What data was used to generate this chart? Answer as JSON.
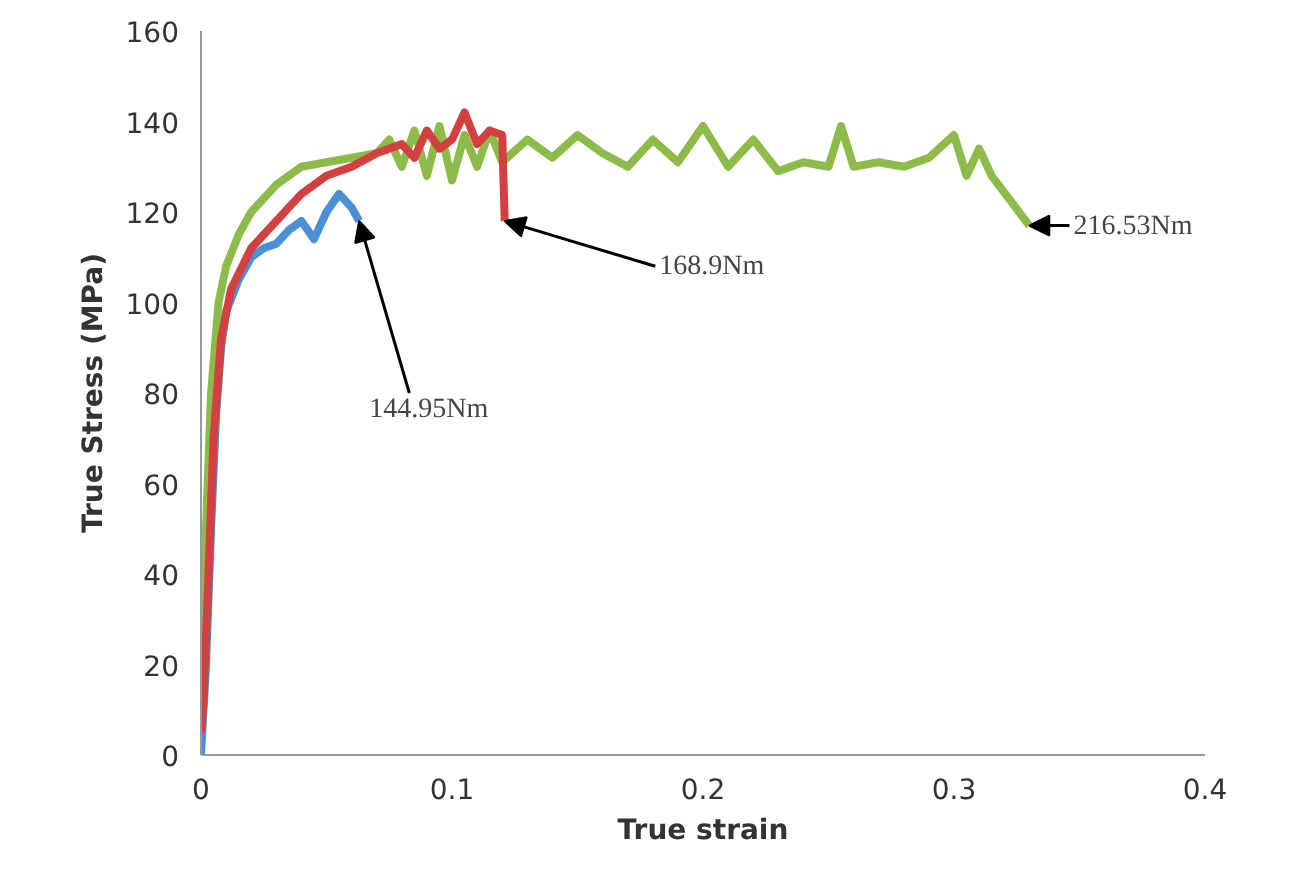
{
  "chart_data": {
    "type": "line",
    "xlabel": "True strain",
    "ylabel": "True Stress (MPa)",
    "xlim": [
      0,
      0.4
    ],
    "ylim": [
      0,
      160
    ],
    "xticks": [
      0,
      0.1,
      0.2,
      0.3,
      0.4
    ],
    "yticks": [
      0,
      20,
      40,
      60,
      80,
      100,
      120,
      140,
      160
    ],
    "grid": false,
    "marker": "none",
    "line_style": "solid",
    "series": [
      {
        "color": "#d43f3f",
        "x": [
          0,
          0.001,
          0.003,
          0.005,
          0.008,
          0.012,
          0.02,
          0.03,
          0.04,
          0.05,
          0.06,
          0.07,
          0.08,
          0.085,
          0.09,
          0.095,
          0.1,
          0.105,
          0.11,
          0.115,
          0.12,
          0.121
        ],
        "values": [
          5,
          12,
          40,
          70,
          92,
          103,
          112,
          118,
          124,
          128,
          130,
          133,
          135,
          132,
          138,
          134,
          136,
          142,
          135,
          138,
          137,
          118
        ]
      },
      {
        "color": "#4a8fd8",
        "x": [
          0,
          0.002,
          0.004,
          0.006,
          0.008,
          0.01,
          0.015,
          0.02,
          0.025,
          0.03,
          0.035,
          0.04,
          0.045,
          0.05,
          0.055,
          0.06,
          0.063
        ],
        "values": [
          0,
          20,
          50,
          75,
          90,
          98,
          105,
          110,
          112,
          113,
          116,
          118,
          114,
          120,
          124,
          121,
          118
        ]
      },
      {
        "color": "#8dbb4a",
        "x": [
          0,
          0.002,
          0.004,
          0.007,
          0.01,
          0.015,
          0.02,
          0.03,
          0.04,
          0.05,
          0.06,
          0.07,
          0.075,
          0.08,
          0.085,
          0.09,
          0.095,
          0.1,
          0.105,
          0.11,
          0.115,
          0.12,
          0.13,
          0.14,
          0.15,
          0.16,
          0.17,
          0.18,
          0.19,
          0.2,
          0.21,
          0.22,
          0.23,
          0.24,
          0.25,
          0.255,
          0.26,
          0.27,
          0.28,
          0.29,
          0.3,
          0.305,
          0.31,
          0.315,
          0.33
        ],
        "values": [
          15,
          50,
          80,
          100,
          108,
          115,
          120,
          126,
          130,
          131,
          132,
          133,
          136,
          130,
          138,
          128,
          139,
          127,
          137,
          130,
          138,
          131,
          136,
          132,
          137,
          133,
          130,
          136,
          131,
          139,
          130,
          136,
          129,
          131,
          130,
          139,
          130,
          131,
          130,
          132,
          137,
          128,
          134,
          128,
          117
        ]
      }
    ],
    "annotations": [
      {
        "text": "144.95Nm",
        "x": 0.063,
        "y": 118
      },
      {
        "text": "168.9Nm",
        "x": 0.121,
        "y": 118
      },
      {
        "text": "216.53Nm",
        "x": 0.33,
        "y": 117
      }
    ]
  }
}
